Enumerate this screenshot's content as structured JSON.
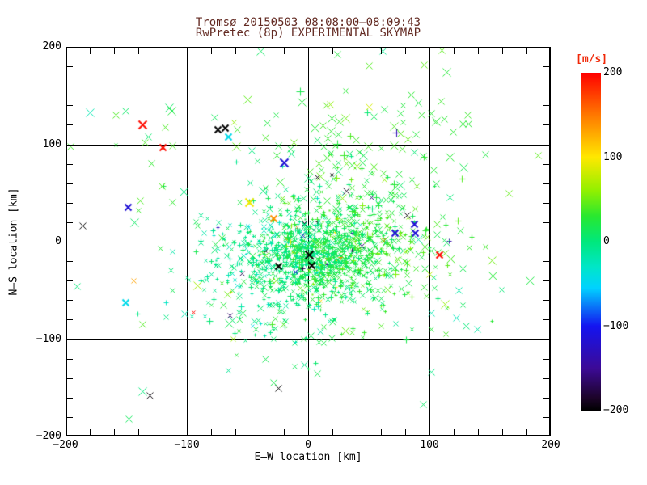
{
  "chart_data": {
    "type": "scatter",
    "title": "Tromsø 20150503 08:08:00–08:09:43",
    "subtitle": "RwPretec (8p) EXPERIMENTAL SKYMAP",
    "title_color": "#632a22",
    "xlabel": "E–W location [km]",
    "ylabel": "N–S location [km]",
    "xlim": [
      -200,
      200
    ],
    "ylim": [
      -200,
      200
    ],
    "xticks": [
      -200,
      -100,
      0,
      100,
      200
    ],
    "xtick_labels": [
      "−200",
      "−100",
      "0",
      "100",
      "200"
    ],
    "yticks": [
      -200,
      -100,
      0,
      100,
      200
    ],
    "ytick_labels": [
      "−200",
      "−100",
      "0",
      "100",
      "200"
    ],
    "minor_tick_step": 20,
    "grid_lines": [
      -100,
      0,
      100
    ],
    "grid_on": true,
    "axis_color": "#000000",
    "background": "#ffffff",
    "marker_style": "x and + glyphs colored by Doppler velocity",
    "colorbar": {
      "label": "[m/s]",
      "label_color": "#f02808",
      "range": [
        -200,
        200
      ],
      "ticks": [
        200,
        100,
        0,
        -100,
        -200
      ],
      "tick_labels": [
        "200",
        "100",
        "0",
        "−100",
        "−200"
      ],
      "stops": [
        [
          200,
          "#ff0000"
        ],
        [
          150,
          "#ff7800"
        ],
        [
          100,
          "#ffe800"
        ],
        [
          60,
          "#90f000"
        ],
        [
          30,
          "#28e830"
        ],
        [
          0,
          "#00e87c"
        ],
        [
          -30,
          "#00e6c8"
        ],
        [
          -55,
          "#00d2ff"
        ],
        [
          -100,
          "#1414f0"
        ],
        [
          -150,
          "#3c0a96"
        ],
        [
          -185,
          "#1c0428"
        ],
        [
          -200,
          "#000000"
        ]
      ]
    },
    "clusters": [
      {
        "n": 850,
        "cx": 8,
        "cy": -10,
        "sx": 26,
        "sy": 22,
        "smin": 3,
        "smax": 5,
        "markers": {
          "plus": 0.45,
          "x": 0.35,
          "dot": 0.2
        },
        "vbase": 12,
        "vslope": 0.25,
        "vnoise": 16
      },
      {
        "n": 380,
        "cx": 5,
        "cy": -8,
        "sx": 45,
        "sy": 38,
        "smin": 4,
        "smax": 6,
        "markers": {
          "plus": 0.4,
          "x": 0.6,
          "dot": 0
        },
        "vbase": 14,
        "vslope": 0.22,
        "vnoise": 18
      },
      {
        "n": 150,
        "cx": 60,
        "cy": 5,
        "sx": 28,
        "sy": 30,
        "smin": 4,
        "smax": 7,
        "markers": {
          "plus": 0.35,
          "x": 0.65,
          "dot": 0
        },
        "vbase": 25,
        "vslope": 0,
        "vnoise": 14
      },
      {
        "n": 90,
        "cx": 35,
        "cy": 95,
        "sx": 45,
        "sy": 38,
        "smin": 6,
        "smax": 9,
        "markers": {
          "plus": 0.1,
          "x": 0.9,
          "dot": 0
        },
        "vbase": 30,
        "vslope": 0,
        "vnoise": 13
      },
      {
        "n": 120,
        "cx": -40,
        "cy": -25,
        "sx": 30,
        "sy": 28,
        "smin": 3,
        "smax": 5,
        "markers": {
          "plus": 0.6,
          "x": 0.4,
          "dot": 0
        },
        "vbase": -8,
        "vslope": 0,
        "vnoise": 13
      },
      {
        "n": 90,
        "cx": -5,
        "cy": -70,
        "sx": 55,
        "sy": 30,
        "smin": 4,
        "smax": 7,
        "markers": {
          "plus": 0.4,
          "x": 0.6,
          "dot": 0
        },
        "vbase": 10,
        "vslope": 0,
        "vnoise": 14
      },
      {
        "n": 110,
        "cx": 0,
        "cy": 10,
        "sx": 105,
        "sy": 85,
        "smin": 6,
        "smax": 9,
        "markers": {
          "plus": 0.1,
          "x": 0.9,
          "dot": 0
        },
        "vbase": 22,
        "vslope": 0,
        "vnoise": 16
      }
    ],
    "notable_points": [
      {
        "x": -137,
        "y": 120,
        "v": 195,
        "s": 9,
        "w": 2
      },
      {
        "x": -120,
        "y": 97,
        "v": 195,
        "s": 8,
        "w": 2
      },
      {
        "x": -75,
        "y": 115,
        "v": -200,
        "s": 8,
        "w": 2
      },
      {
        "x": -69,
        "y": 117,
        "v": -200,
        "s": 8,
        "w": 2
      },
      {
        "x": -66,
        "y": 108,
        "v": -45,
        "s": 8,
        "w": 2
      },
      {
        "x": -20,
        "y": 81,
        "v": -115,
        "s": 9,
        "w": 2
      },
      {
        "x": -149,
        "y": 36,
        "v": -115,
        "s": 8,
        "w": 2
      },
      {
        "x": -186,
        "y": 17,
        "v": -200,
        "s": 7,
        "w": 1
      },
      {
        "x": -49,
        "y": 41,
        "v": 95,
        "s": 10,
        "w": 2
      },
      {
        "x": -29,
        "y": 24,
        "v": 140,
        "s": 8,
        "w": 2
      },
      {
        "x": 108,
        "y": -13,
        "v": 195,
        "s": 8,
        "w": 2
      },
      {
        "x": 81,
        "y": 27,
        "v": -200,
        "s": 8,
        "w": 1
      },
      {
        "x": 87,
        "y": 18,
        "v": -115,
        "s": 7,
        "w": 2
      },
      {
        "x": 71,
        "y": 9,
        "v": -115,
        "s": 7,
        "w": 2
      },
      {
        "x": 88,
        "y": 9,
        "v": -115,
        "s": 7,
        "w": 2
      },
      {
        "x": -25,
        "y": -150,
        "v": -200,
        "s": 7,
        "w": 1
      },
      {
        "x": -151,
        "y": -62,
        "v": -45,
        "s": 8,
        "w": 2
      },
      {
        "x": -95,
        "y": -72,
        "v": 195,
        "s": 4,
        "w": 1
      },
      {
        "x": 1,
        "y": -13,
        "v": -200,
        "s": 9,
        "w": 2
      },
      {
        "x": -25,
        "y": -25,
        "v": -200,
        "s": 7,
        "w": 2
      },
      {
        "x": 3,
        "y": -24,
        "v": -200,
        "s": 7,
        "w": 2
      },
      {
        "x": 7,
        "y": 66,
        "v": -200,
        "s": 5,
        "w": 1
      },
      {
        "x": 19,
        "y": 69,
        "v": -200,
        "s": 4,
        "w": 1
      },
      {
        "x": -5,
        "y": 7,
        "v": -115,
        "s": 5,
        "w": 1
      },
      {
        "x": -11,
        "y": -31,
        "v": -115,
        "s": 6,
        "w": 1
      },
      {
        "x": -13,
        "y": -10,
        "v": 95,
        "s": 4,
        "w": 1
      },
      {
        "x": 50,
        "y": 139,
        "v": 85,
        "s": 8,
        "w": 1
      },
      {
        "x": -159,
        "y": 130,
        "v": 40,
        "s": 8,
        "w": 1
      },
      {
        "x": 110,
        "y": 197,
        "v": 45,
        "s": 8,
        "w": 1
      },
      {
        "x": 95,
        "y": 182,
        "v": 45,
        "s": 7,
        "w": 1
      },
      {
        "x": 189,
        "y": 89,
        "v": 45,
        "s": 8,
        "w": 1
      },
      {
        "x": 101,
        "y": -73,
        "v": -20,
        "s": 8,
        "w": 1
      },
      {
        "x": 122,
        "y": -78,
        "v": -25,
        "s": 8,
        "w": 1
      },
      {
        "x": 139,
        "y": -90,
        "v": -15,
        "s": 8,
        "w": 1
      },
      {
        "x": 114,
        "y": -68,
        "v": 30,
        "s": 4,
        "w": 1
      },
      {
        "x": 109,
        "y": 144,
        "v": 35,
        "s": 8,
        "w": 1
      },
      {
        "x": 131,
        "y": 130,
        "v": 35,
        "s": 8,
        "w": 1
      },
      {
        "x": 127,
        "y": 121,
        "v": 30,
        "s": 7,
        "w": 1
      },
      {
        "x": 132,
        "y": 121,
        "v": 30,
        "s": 7,
        "w": 1
      },
      {
        "x": 119,
        "y": 113,
        "v": 30,
        "s": 7,
        "w": 1
      },
      {
        "x": 101,
        "y": 132,
        "v": 30,
        "s": 7,
        "w": 1
      },
      {
        "x": 112,
        "y": 126,
        "v": 30,
        "s": 7,
        "w": 1
      },
      {
        "x": -118,
        "y": 118,
        "v": 40,
        "s": 8,
        "w": 1
      },
      {
        "x": -135,
        "y": 102,
        "v": 40,
        "s": 8,
        "w": 1
      },
      {
        "x": -112,
        "y": 99,
        "v": 40,
        "s": 8,
        "w": 1
      },
      {
        "x": -159,
        "y": 100,
        "v": 30,
        "s": 4,
        "w": 1
      },
      {
        "x": -121,
        "y": 57,
        "v": 40,
        "s": 8,
        "w": 1
      },
      {
        "x": -139,
        "y": 42,
        "v": 40,
        "s": 8,
        "w": 1
      },
      {
        "x": -140,
        "y": 32,
        "v": 35,
        "s": 5,
        "w": 1
      }
    ]
  }
}
